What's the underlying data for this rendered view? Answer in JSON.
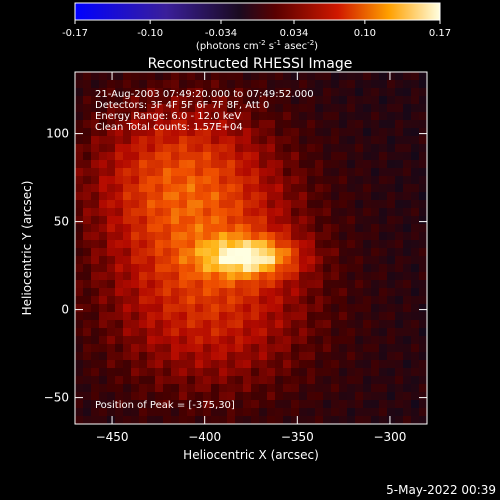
{
  "chart_data": {
    "type": "heatmap",
    "title": "Reconstructed RHESSI Image",
    "xlabel": "Heliocentric X (arcsec)",
    "ylabel": "Heliocentric Y (arcsec)",
    "xlim": [
      -470,
      -280
    ],
    "ylim": [
      -65,
      135
    ],
    "xticks": [
      -450,
      -400,
      -350,
      -300
    ],
    "yticks": [
      -50,
      0,
      50,
      100
    ],
    "colorbar": {
      "ticks": [
        "-0.17",
        "-0.10",
        "-0.034",
        "0.034",
        "0.10",
        "0.17"
      ],
      "tick_values": [
        -0.17,
        -0.1,
        -0.034,
        0.034,
        0.1,
        0.17
      ],
      "range": [
        -0.17,
        0.17
      ],
      "unit_main": "(photons cm",
      "unit_exp1": "-2",
      "unit_mid": " s",
      "unit_exp2": "-1",
      "unit_end": " asec",
      "unit_exp3": "-2",
      "unit_close": ")"
    },
    "info_lines": [
      "21-Aug-2003 07:49:20.000 to 07:49:52.000",
      "Detectors: 3F 4F 5F 6F 7F 8F, Att 0",
      "Energy Range: 6.0 - 12.0 keV",
      "Clean     Total counts: 1.57E+04"
    ],
    "peak_label": "Position of Peak = [-375,30]",
    "peak": {
      "x": -375,
      "y": 30,
      "value": 0.17
    },
    "blobs": [
      {
        "x": -375,
        "y": 30,
        "sx": 18,
        "sy": 8,
        "amp": 0.12
      },
      {
        "x": -400,
        "y": 45,
        "sx": 40,
        "sy": 45,
        "amp": 0.085
      },
      {
        "x": -420,
        "y": 80,
        "sx": 35,
        "sy": 30,
        "amp": 0.06
      },
      {
        "x": -395,
        "y": -10,
        "sx": 45,
        "sy": 35,
        "amp": 0.05
      }
    ],
    "background": -0.035
  },
  "footer": {
    "date": "5-May-2022 00:39"
  },
  "colors": {
    "background": "#000000",
    "text": "#ffffff"
  }
}
